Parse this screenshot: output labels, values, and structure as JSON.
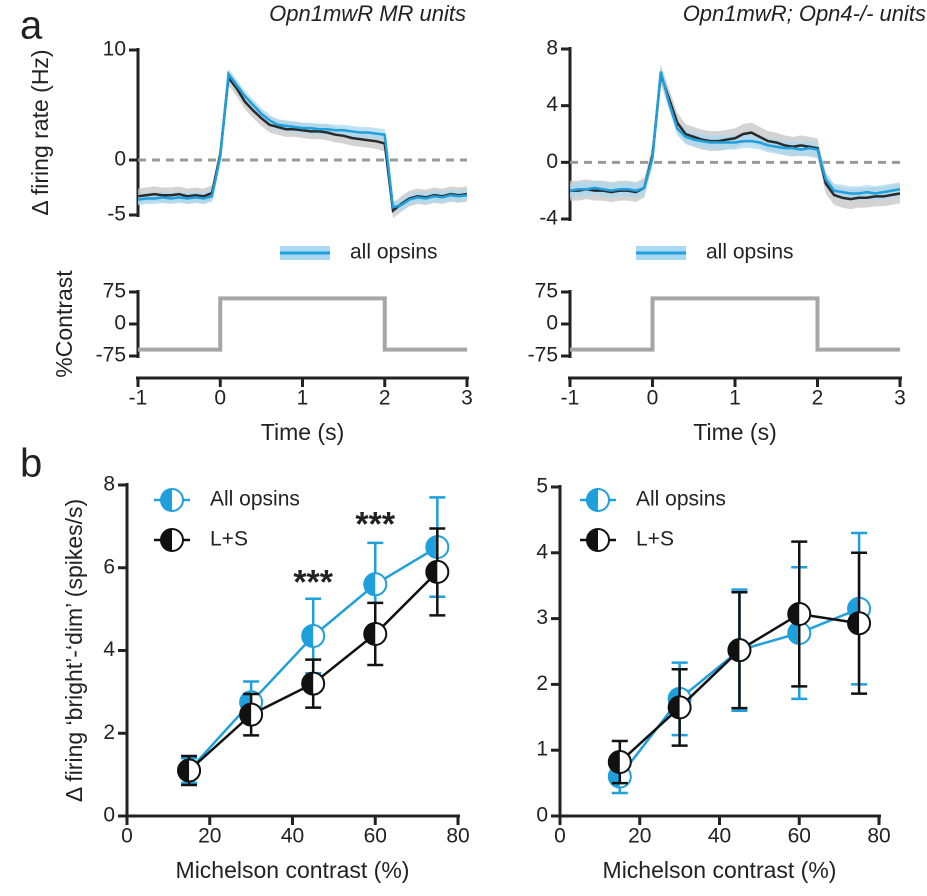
{
  "panel_labels": [
    "a",
    "b"
  ],
  "chart_data": [
    {
      "type": "band-line",
      "title": "Opn1mwR MR units",
      "ylabel": "Δ firing rate (Hz)",
      "x": [
        -1,
        -0.9,
        -0.8,
        -0.7,
        -0.6,
        -0.5,
        -0.4,
        -0.3,
        -0.2,
        -0.1,
        0,
        0.1,
        0.2,
        0.3,
        0.4,
        0.5,
        0.6,
        0.7,
        0.8,
        0.9,
        1,
        1.1,
        1.2,
        1.3,
        1.4,
        1.5,
        1.6,
        1.7,
        1.8,
        1.9,
        2,
        2.1,
        2.2,
        2.3,
        2.4,
        2.5,
        2.6,
        2.7,
        2.8,
        2.9,
        3
      ],
      "xlim": [
        -1,
        3
      ],
      "ylim": [
        -5,
        10
      ],
      "yticks": [
        -5,
        0,
        10
      ],
      "reference_line": 0,
      "series": [
        {
          "color": "#2a2a2a",
          "band_color": "#c4c4c4",
          "error": 0.7,
          "values": [
            -3.3,
            -3.2,
            -3.1,
            -3.2,
            -3.2,
            -3.1,
            -3.3,
            -3.2,
            -3.3,
            -3.0,
            0.5,
            7.5,
            6.5,
            5.3,
            4.5,
            3.8,
            3.2,
            3.0,
            2.8,
            2.8,
            2.7,
            2.6,
            2.6,
            2.5,
            2.3,
            2.2,
            2.0,
            1.9,
            1.8,
            1.7,
            1.5,
            -4.6,
            -4.0,
            -3.5,
            -3.3,
            -3.4,
            -3.2,
            -3.3,
            -3.1,
            -3.2,
            -3.1
          ]
        },
        {
          "name": "all opsins",
          "color": "#1f9fdc",
          "band_color": "#a9d9f2",
          "error": 0.5,
          "values": [
            -3.6,
            -3.5,
            -3.5,
            -3.4,
            -3.5,
            -3.4,
            -3.5,
            -3.4,
            -3.5,
            -3.3,
            0.3,
            7.8,
            6.8,
            5.8,
            5.0,
            4.2,
            3.6,
            3.2,
            3.1,
            3.0,
            2.9,
            2.9,
            2.8,
            2.8,
            2.7,
            2.7,
            2.6,
            2.5,
            2.5,
            2.4,
            2.3,
            -4.3,
            -4.1,
            -3.6,
            -3.4,
            -3.5,
            -3.3,
            -3.4,
            -3.2,
            -3.3,
            -3.2
          ]
        }
      ]
    },
    {
      "type": "line",
      "ylabel": "%Contrast",
      "xlabel": "Time (s)",
      "x": [
        -1,
        0,
        0,
        2,
        2,
        3
      ],
      "values": [
        -60,
        -60,
        60,
        60,
        -60,
        -60
      ],
      "color": "#a6a6a6",
      "xlim": [
        -1,
        3
      ],
      "xticks": [
        -1,
        0,
        1,
        2,
        3
      ],
      "ylim": [
        -75,
        75
      ],
      "yticks": [
        -75,
        0,
        75
      ]
    },
    {
      "type": "band-line",
      "title": "Opn1mwR; Opn4-/- units",
      "x": [
        -1,
        -0.9,
        -0.8,
        -0.7,
        -0.6,
        -0.5,
        -0.4,
        -0.3,
        -0.2,
        -0.1,
        0,
        0.1,
        0.2,
        0.3,
        0.4,
        0.5,
        0.6,
        0.7,
        0.8,
        0.9,
        1,
        1.1,
        1.2,
        1.3,
        1.4,
        1.5,
        1.6,
        1.7,
        1.8,
        1.9,
        2,
        2.1,
        2.2,
        2.3,
        2.4,
        2.5,
        2.6,
        2.7,
        2.8,
        2.9,
        3
      ],
      "xlim": [
        -1,
        3
      ],
      "ylim": [
        -4,
        8
      ],
      "yticks": [
        -4,
        0,
        4,
        8
      ],
      "reference_line": 0,
      "series": [
        {
          "color": "#2a2a2a",
          "band_color": "#c4c4c4",
          "error": 0.7,
          "values": [
            -2.0,
            -2.0,
            -1.9,
            -2.0,
            -2.0,
            -2.1,
            -2.0,
            -2.0,
            -2.1,
            -1.8,
            0.5,
            6.2,
            4.5,
            2.8,
            2.0,
            1.8,
            1.6,
            1.5,
            1.5,
            1.6,
            1.7,
            2.0,
            2.1,
            1.8,
            1.5,
            1.4,
            1.2,
            1.1,
            1.2,
            1.1,
            1.0,
            -1.5,
            -2.3,
            -2.5,
            -2.6,
            -2.5,
            -2.5,
            -2.4,
            -2.4,
            -2.3,
            -2.2
          ]
        },
        {
          "name": "all opsins",
          "color": "#1f9fdc",
          "band_color": "#a9d9f2",
          "error": 0.5,
          "values": [
            -2.0,
            -1.9,
            -1.9,
            -1.8,
            -1.9,
            -2.0,
            -1.9,
            -1.9,
            -2.0,
            -1.8,
            0.3,
            6.4,
            4.2,
            2.4,
            1.8,
            1.6,
            1.5,
            1.4,
            1.4,
            1.4,
            1.4,
            1.5,
            1.5,
            1.4,
            1.2,
            1.1,
            1.0,
            1.0,
            0.9,
            1.0,
            0.9,
            -1.2,
            -2.0,
            -2.1,
            -2.2,
            -2.2,
            -2.1,
            -2.2,
            -2.1,
            -2.0,
            -1.9
          ]
        }
      ]
    },
    {
      "type": "line",
      "xlabel": "Time (s)",
      "x": [
        -1,
        0,
        0,
        2,
        2,
        3
      ],
      "values": [
        -60,
        -60,
        60,
        60,
        -60,
        -60
      ],
      "color": "#a6a6a6",
      "xlim": [
        -1,
        3
      ],
      "xticks": [
        -1,
        0,
        1,
        2,
        3
      ],
      "ylim": [
        -75,
        75
      ],
      "yticks": [
        -75,
        0,
        75
      ]
    },
    {
      "type": "errorbar",
      "ylabel": "Δ firing ‘bright’-‘dim’ (spikes/s)",
      "xlabel": "Michelson contrast (%)",
      "x": [
        15,
        30,
        45,
        60,
        75
      ],
      "xlim": [
        0,
        80
      ],
      "xticks": [
        0,
        20,
        40,
        60,
        80
      ],
      "ylim": [
        0,
        8
      ],
      "yticks": [
        0,
        2,
        4,
        6,
        8
      ],
      "series": [
        {
          "name": "All opsins",
          "color": "#1f9fdc",
          "values": [
            1.1,
            2.75,
            4.35,
            5.6,
            6.5
          ],
          "error": [
            0.3,
            0.5,
            0.9,
            1.0,
            1.2
          ]
        },
        {
          "name": "L+S",
          "color": "#111111",
          "values": [
            1.1,
            2.45,
            3.2,
            4.4,
            5.9
          ],
          "error": [
            0.35,
            0.5,
            0.58,
            0.75,
            1.05
          ]
        }
      ],
      "annotations": [
        {
          "x": 45,
          "y": 5.6,
          "text": "***"
        },
        {
          "x": 60,
          "y": 7.0,
          "text": "***"
        }
      ]
    },
    {
      "type": "errorbar",
      "xlabel": "Michelson contrast (%)",
      "x": [
        15,
        30,
        45,
        60,
        75
      ],
      "xlim": [
        0,
        80
      ],
      "xticks": [
        0,
        20,
        40,
        60,
        80
      ],
      "ylim": [
        0,
        5
      ],
      "yticks": [
        0,
        1,
        2,
        3,
        4,
        5
      ],
      "series": [
        {
          "name": "All opsins",
          "color": "#1f9fdc",
          "values": [
            0.6,
            1.78,
            2.52,
            2.78,
            3.15
          ],
          "error": [
            0.25,
            0.55,
            0.92,
            1.0,
            1.15
          ]
        },
        {
          "name": "L+S",
          "color": "#111111",
          "values": [
            0.82,
            1.65,
            2.52,
            3.07,
            2.93
          ],
          "error": [
            0.32,
            0.58,
            0.88,
            1.1,
            1.07
          ]
        }
      ]
    }
  ]
}
